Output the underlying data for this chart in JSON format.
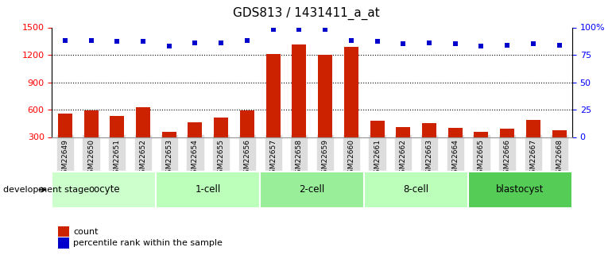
{
  "title": "GDS813 / 1431411_a_at",
  "samples": [
    "GSM22649",
    "GSM22650",
    "GSM22651",
    "GSM22652",
    "GSM22653",
    "GSM22654",
    "GSM22655",
    "GSM22656",
    "GSM22657",
    "GSM22658",
    "GSM22659",
    "GSM22660",
    "GSM22661",
    "GSM22662",
    "GSM22663",
    "GSM22664",
    "GSM22665",
    "GSM22666",
    "GSM22667",
    "GSM22668"
  ],
  "counts": [
    560,
    590,
    530,
    630,
    360,
    460,
    510,
    590,
    1210,
    1310,
    1200,
    1290,
    480,
    410,
    450,
    400,
    360,
    390,
    490,
    370
  ],
  "percentiles": [
    88,
    88,
    87,
    87,
    83,
    86,
    86,
    88,
    98,
    98,
    98,
    88,
    87,
    85,
    86,
    85,
    83,
    84,
    85,
    84
  ],
  "groups": [
    {
      "label": "oocyte",
      "start": 0,
      "end": 4,
      "color": "#ccffcc"
    },
    {
      "label": "1-cell",
      "start": 4,
      "end": 8,
      "color": "#bbffbb"
    },
    {
      "label": "2-cell",
      "start": 8,
      "end": 12,
      "color": "#99ee99"
    },
    {
      "label": "8-cell",
      "start": 12,
      "end": 16,
      "color": "#bbffbb"
    },
    {
      "label": "blastocyst",
      "start": 16,
      "end": 20,
      "color": "#55cc55"
    }
  ],
  "ylim_left": [
    300,
    1500
  ],
  "ylim_right": [
    0,
    100
  ],
  "yticks_left": [
    300,
    600,
    900,
    1200,
    1500
  ],
  "yticks_right": [
    0,
    25,
    50,
    75,
    100
  ],
  "bar_color": "#cc2200",
  "dot_color": "#0000cc",
  "bar_width": 0.55,
  "legend_count_label": "count",
  "legend_pct_label": "percentile rank within the sample",
  "dev_stage_label": "development stage",
  "grid_lines": [
    600,
    900,
    1200
  ],
  "figsize": [
    7.7,
    3.45
  ],
  "dpi": 100
}
